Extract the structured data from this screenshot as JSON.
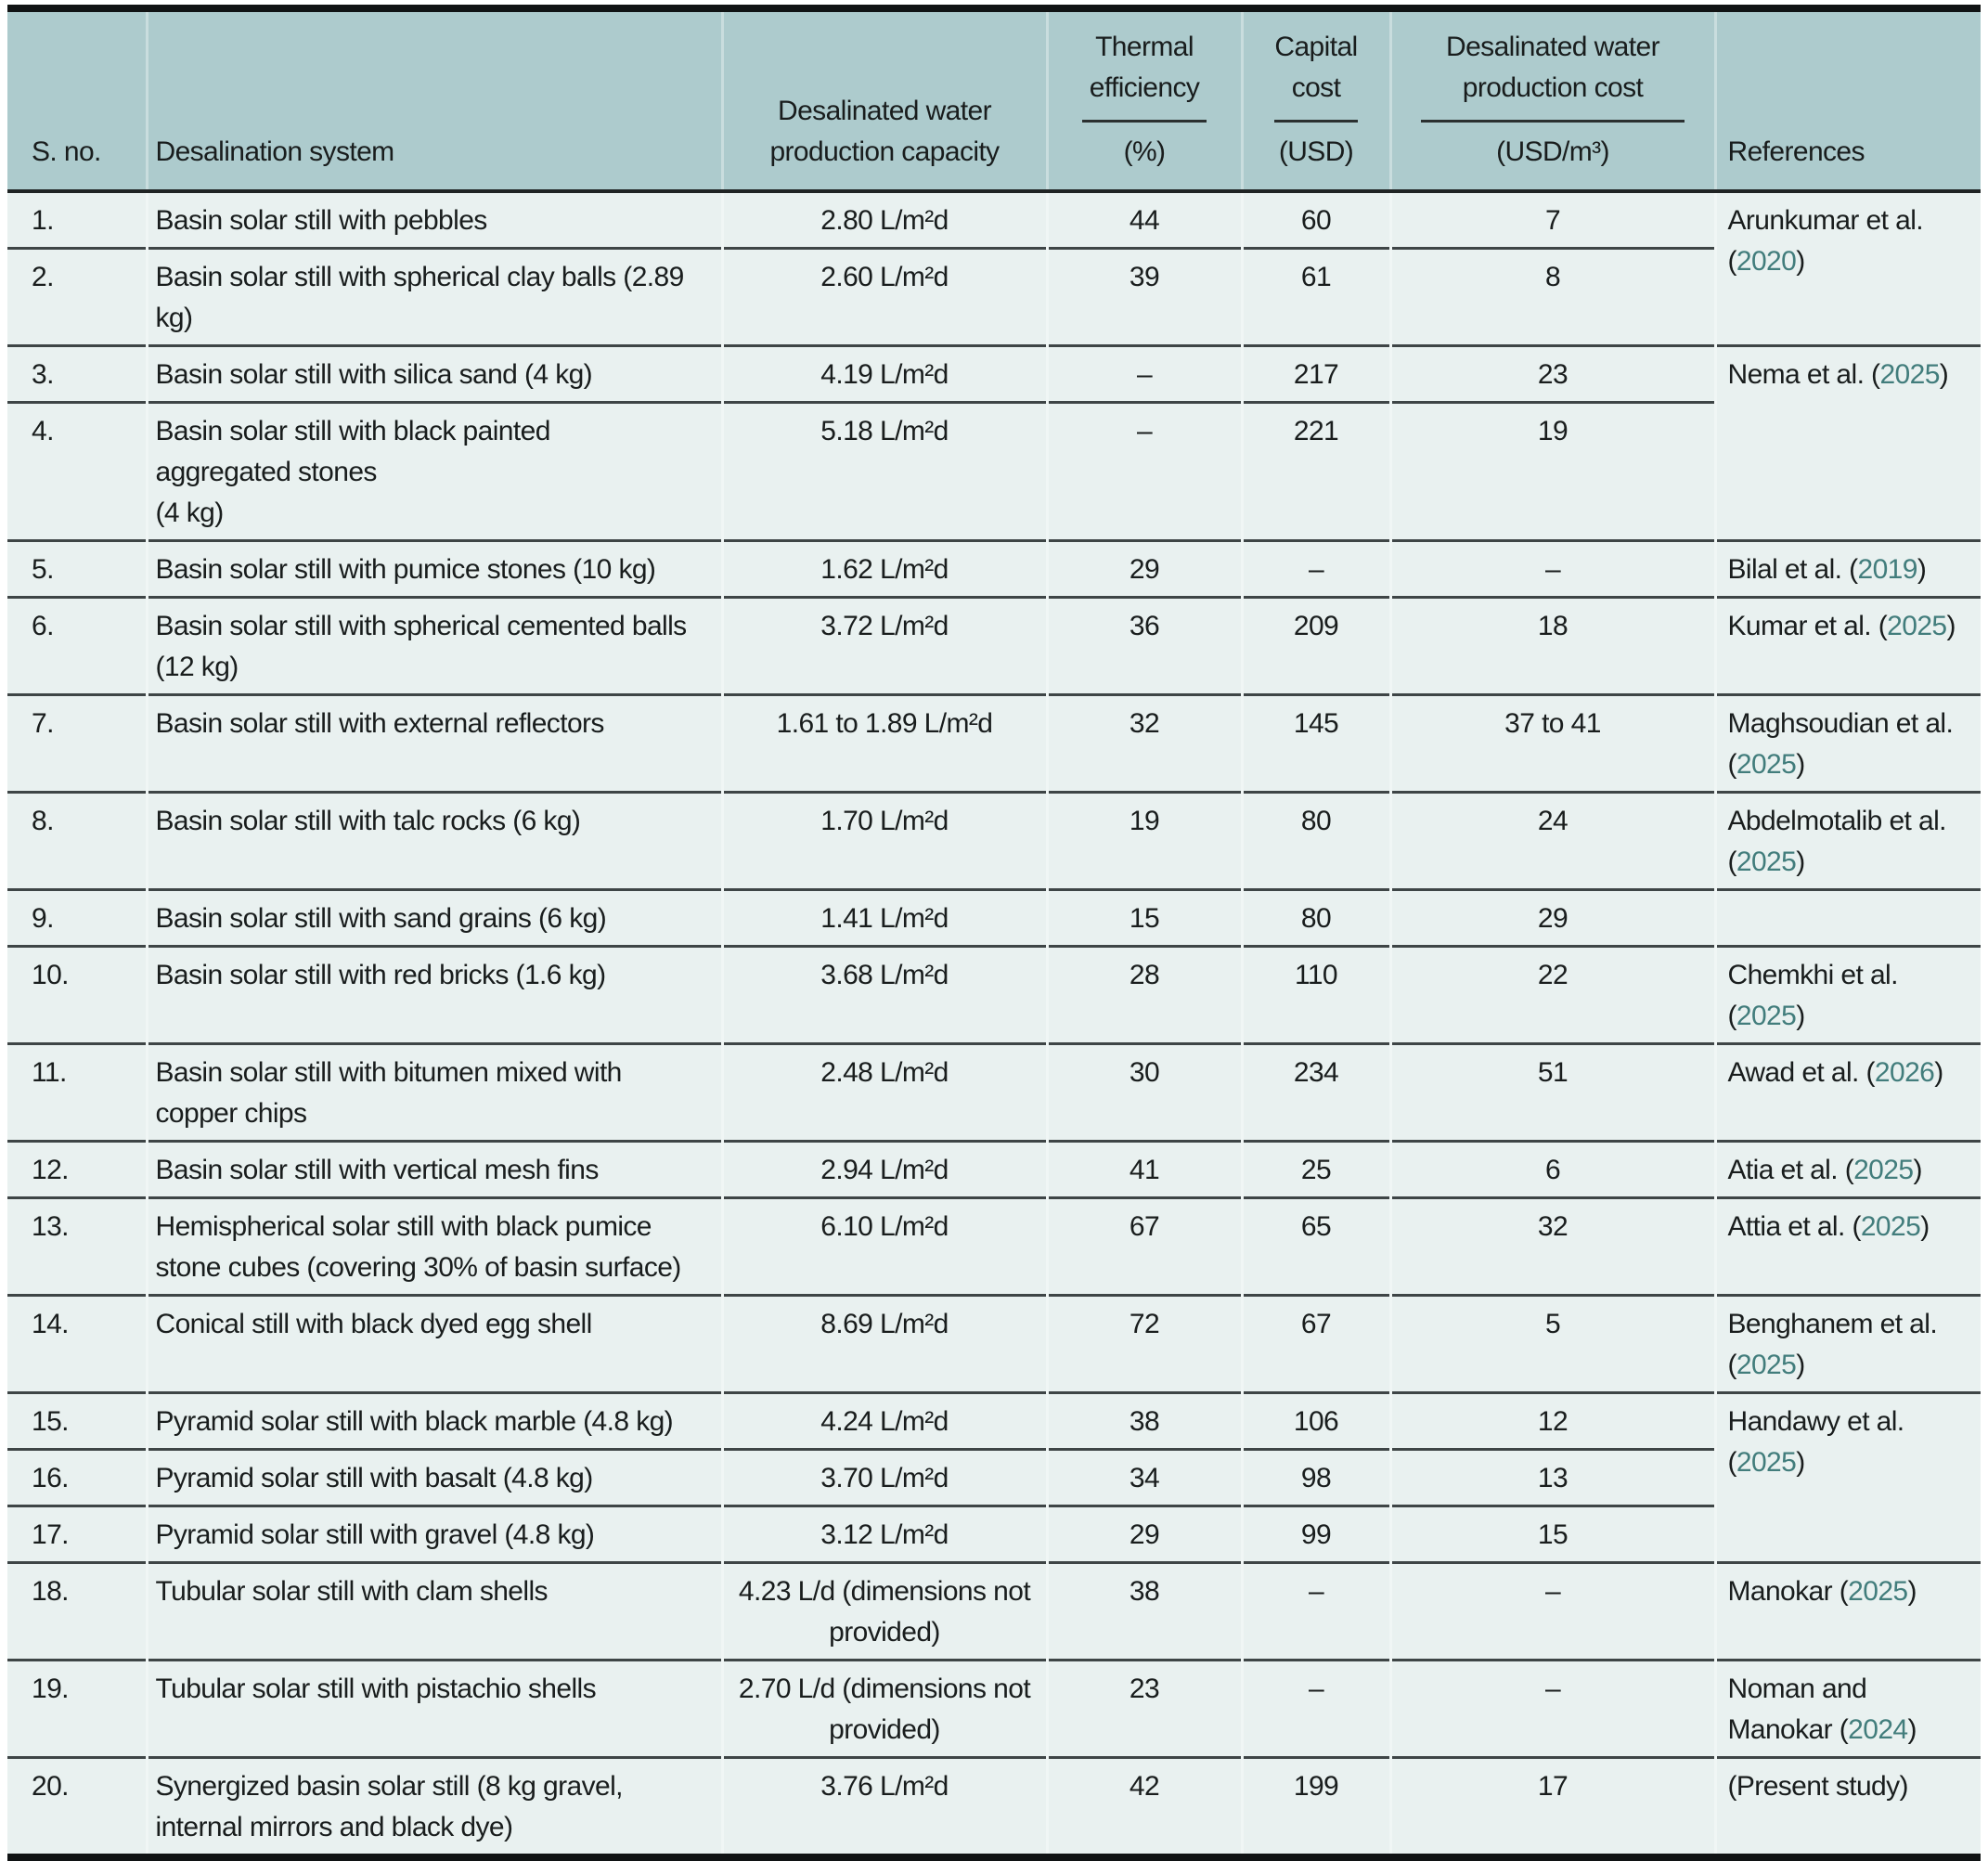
{
  "colors": {
    "header_bg": "#adcbcd",
    "body_bg": "#e9f1f0",
    "year_link": "#427d7c",
    "heavy_border": "#101314",
    "row_divider": "#3e4546"
  },
  "table": {
    "columns": {
      "sno": "S. no.",
      "system": "Desalination system",
      "capacity": "Desalinated water production capacity",
      "thermal": {
        "label": "Thermal efficiency",
        "unit": "(%)"
      },
      "capital": {
        "label": "Capital cost",
        "unit": "(USD)"
      },
      "prod_cost": {
        "label": "Desalinated water production cost",
        "unit": "(USD/m³)"
      },
      "references": "References"
    },
    "rows": [
      {
        "no": "1.",
        "system": "Basin solar still with pebbles",
        "capacity": "2.80 L/m²d",
        "eff": "44",
        "capital": "60",
        "cost": "7",
        "ref": {
          "pre": "Arunkumar et al. (",
          "year": "2020",
          "post": ")"
        }
      },
      {
        "no": "2.",
        "system": "Basin solar still with spherical clay balls (2.89 kg)",
        "capacity": "2.60 L/m²d",
        "eff": "39",
        "capital": "61",
        "cost": "8"
      },
      {
        "no": "3.",
        "system": "Basin solar still with silica sand (4 kg)",
        "capacity": "4.19 L/m²d",
        "eff": "–",
        "capital": "217",
        "cost": "23",
        "ref": {
          "pre": "Nema et al. (",
          "year": "2025",
          "post": ")"
        }
      },
      {
        "no": "4.",
        "system": "Basin solar still with black painted\naggregated stones\n(4 kg)",
        "capacity": "5.18 L/m²d",
        "eff": "–",
        "capital": "221",
        "cost": "19"
      },
      {
        "no": "5.",
        "system": "Basin solar still with pumice stones (10 kg)",
        "capacity": "1.62 L/m²d",
        "eff": "29",
        "capital": "–",
        "cost": "–",
        "ref": {
          "pre": "Bilal et al. (",
          "year": "2019",
          "post": ")"
        }
      },
      {
        "no": "6.",
        "system": "Basin solar still with spherical cemented balls (12 kg)",
        "capacity": "3.72 L/m²d",
        "eff": "36",
        "capital": "209",
        "cost": "18",
        "ref": {
          "pre": "Kumar et al. (",
          "year": "2025",
          "post": ")"
        }
      },
      {
        "no": "7.",
        "system": "Basin solar still with external reflectors",
        "capacity": "1.61 to 1.89 L/m²d",
        "eff": "32",
        "capital": "145",
        "cost": "37 to 41",
        "ref": {
          "pre": "Maghsoudian et al. (",
          "year": "2025",
          "post": ")"
        }
      },
      {
        "no": "8.",
        "system": "Basin solar still with talc rocks (6 kg)",
        "capacity": "1.70 L/m²d",
        "eff": "19",
        "capital": "80",
        "cost": "24",
        "ref": {
          "pre": "Abdelmotalib et al. (",
          "year": "2025",
          "post": ")"
        }
      },
      {
        "no": "9.",
        "system": "Basin solar still with sand grains (6 kg)",
        "capacity": "1.41 L/m²d",
        "eff": "15",
        "capital": "80",
        "cost": "29",
        "ref": {
          "pre": "",
          "year": "",
          "post": ""
        }
      },
      {
        "no": "10.",
        "system": "Basin solar still with red bricks (1.6 kg)",
        "capacity": "3.68 L/m²d",
        "eff": "28",
        "capital": "110",
        "cost": "22",
        "ref": {
          "pre": "Chemkhi et al. (",
          "year": "2025",
          "post": ")"
        }
      },
      {
        "no": "11.",
        "system": "Basin solar still with bitumen mixed with copper chips",
        "capacity": "2.48 L/m²d",
        "eff": "30",
        "capital": "234",
        "cost": "51",
        "ref": {
          "pre": "Awad et al. (",
          "year": "2026",
          "post": ")"
        }
      },
      {
        "no": "12.",
        "system": "Basin solar still with vertical mesh fins",
        "capacity": "2.94 L/m²d",
        "eff": "41",
        "capital": "25",
        "cost": "6",
        "ref": {
          "pre": "Atia et al. (",
          "year": "2025",
          "post": ")"
        }
      },
      {
        "no": "13.",
        "system": "Hemispherical solar still with black pumice stone cubes (covering 30% of basin surface)",
        "capacity": "6.10 L/m²d",
        "eff": "67",
        "capital": "65",
        "cost": "32",
        "ref": {
          "pre": "Attia et al. (",
          "year": "2025",
          "post": ")"
        }
      },
      {
        "no": "14.",
        "system": "Conical still with black dyed egg shell",
        "capacity": "8.69 L/m²d",
        "eff": "72",
        "capital": "67",
        "cost": "5",
        "ref": {
          "pre": "Benghanem et al. (",
          "year": "2025",
          "post": ")"
        }
      },
      {
        "no": "15.",
        "system": "Pyramid solar still with black marble (4.8 kg)",
        "capacity": "4.24 L/m²d",
        "eff": "38",
        "capital": "106",
        "cost": "12",
        "ref": {
          "pre": "Handawy et al. (",
          "year": "2025",
          "post": ")"
        }
      },
      {
        "no": "16.",
        "system": "Pyramid solar still with basalt (4.8 kg)",
        "capacity": "3.70 L/m²d",
        "eff": "34",
        "capital": "98",
        "cost": "13"
      },
      {
        "no": "17.",
        "system": "Pyramid solar still with gravel (4.8 kg)",
        "capacity": "3.12 L/m²d",
        "eff": "29",
        "capital": "99",
        "cost": "15"
      },
      {
        "no": "18.",
        "system": "Tubular solar still with clam shells",
        "capacity": "4.23 L/d (dimensions not provided)",
        "eff": "38",
        "capital": "–",
        "cost": "–",
        "ref": {
          "pre": "Manokar (",
          "year": "2025",
          "post": ")"
        }
      },
      {
        "no": "19.",
        "system": "Tubular solar still with pistachio shells",
        "capacity": "2.70 L/d (dimensions not provided)",
        "eff": "23",
        "capital": "–",
        "cost": "–",
        "ref": {
          "pre": "Noman and\nManokar (",
          "year": "2024",
          "post": ")"
        }
      },
      {
        "no": "20.",
        "system": "Synergized basin solar still (8 kg gravel, internal mirrors and black dye)",
        "capacity": "3.76 L/m²d",
        "eff": "42",
        "capital": "199",
        "cost": "17",
        "ref": {
          "pre": "(Present study)",
          "year": "",
          "post": ""
        }
      }
    ]
  }
}
